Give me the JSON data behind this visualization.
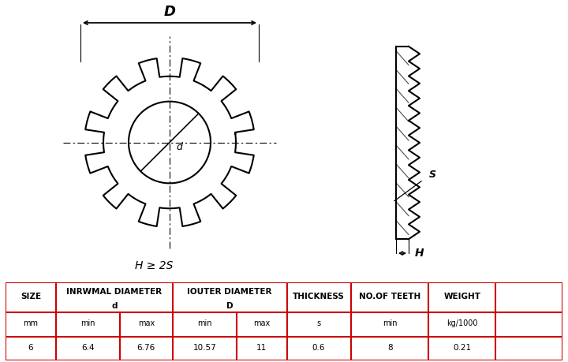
{
  "bg_color": "#ffffff",
  "table_border": "#cc0000",
  "col_bounds": [
    0.0,
    0.09,
    0.205,
    0.3,
    0.415,
    0.505,
    0.62,
    0.76,
    0.88,
    1.0
  ],
  "row_bounds": [
    0.0,
    0.3,
    0.62,
    1.0
  ],
  "data_row": [
    "6",
    "6.4",
    "6.76",
    "10.57",
    "11",
    "0.6",
    "8",
    "0.21"
  ],
  "sub_labels": [
    "mm",
    "min",
    "max",
    "min",
    "max",
    "s",
    "min",
    "kg/1000"
  ],
  "diagram_label_D": "D",
  "diagram_label_d": "d",
  "diagram_label_S": "S",
  "diagram_label_H": "H",
  "diagram_formula": "H ≥ 2S",
  "line_color": "#000000"
}
